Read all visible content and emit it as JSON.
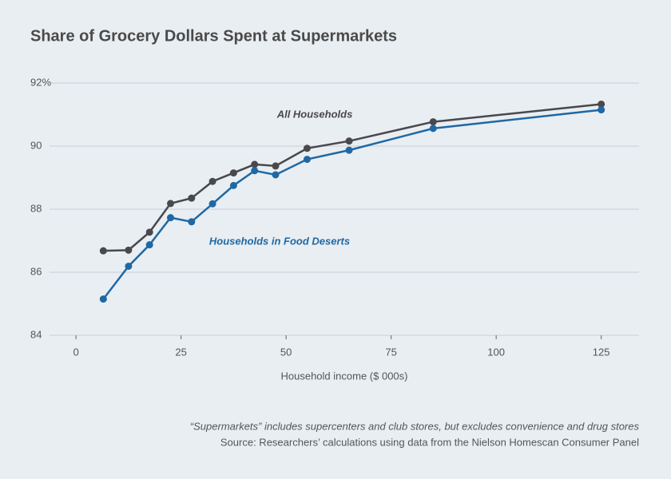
{
  "chart_data": {
    "type": "line",
    "title": "Share of Grocery Dollars Spent at Supermarkets",
    "x_label": "Household income ($ 000s)",
    "notes": [
      "“Supermarkets” includes supercenters and club stores, but excludes convenience and drug stores",
      "Source: Researchers’ calculations using data from the Nielson Homescan Consumer Panel"
    ],
    "x": [
      6.5,
      12.5,
      17.5,
      22.5,
      27.5,
      32.5,
      37.5,
      42.5,
      47.5,
      55,
      65,
      85,
      125
    ],
    "series": [
      {
        "name": "All Households",
        "color": "#48484d",
        "values": [
          86.68,
          86.7,
          87.27,
          88.18,
          88.35,
          88.88,
          89.15,
          89.42,
          89.37,
          89.93,
          90.16,
          90.77,
          91.33
        ]
      },
      {
        "name": "Households in Food Deserts",
        "color": "#1f68a4",
        "values": [
          85.15,
          86.19,
          86.87,
          87.73,
          87.6,
          88.17,
          88.75,
          89.22,
          89.09,
          89.58,
          89.87,
          90.56,
          91.15
        ]
      }
    ],
    "xlim": [
      -6.3,
      134
    ],
    "ylim": [
      84,
      92
    ],
    "xticks": [
      0,
      25,
      50,
      75,
      100,
      125
    ],
    "yticks": [
      84,
      86,
      88,
      90,
      {
        "value": 92,
        "label": "92%"
      }
    ],
    "grid": true
  }
}
